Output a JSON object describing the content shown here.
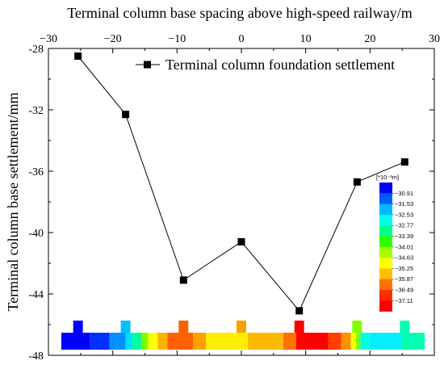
{
  "chart_data": {
    "type": "line",
    "title": "",
    "xlabel": "Terminal column base spacing above high-speed railway/m",
    "ylabel": "Terminal column base settlement/mm",
    "xlim": [
      -30,
      30
    ],
    "ylim": [
      -48,
      -28
    ],
    "x_ticks": [
      -30,
      -20,
      -10,
      0,
      10,
      20,
      30
    ],
    "x_tick_labels": [
      "−30",
      "−20",
      "−10",
      "0",
      "10",
      "20",
      "30"
    ],
    "y_ticks": [
      -28,
      -32,
      -36,
      -40,
      -44,
      -48
    ],
    "y_tick_labels": [
      "-28",
      "-32",
      "-36",
      "-40",
      "-44",
      "-48"
    ],
    "x_axis_position": "top",
    "grid": false,
    "legend_position": "top-right",
    "series": [
      {
        "name": "Terminal column foundation settlement",
        "marker": "square",
        "color": "#000000",
        "x": [
          -25.4,
          -18,
          -9,
          0,
          9,
          18,
          25.4
        ],
        "y": [
          -28.5,
          -32.3,
          -43.1,
          -40.6,
          -45.1,
          -36.7,
          -35.4
        ]
      }
    ],
    "colorbar": {
      "unit": "[*10⁻³m]",
      "labels": [
        "−30.91",
        "−31.53",
        "−32.53",
        "−32.77",
        "−33.39",
        "−34.01",
        "−34.63",
        "−35.25",
        "−35.87",
        "−36.49",
        "−37.11"
      ],
      "colors": [
        "#0000ff",
        "#005cff",
        "#00b9ff",
        "#00ffe8",
        "#00ff8b",
        "#2eff00",
        "#a2ff00",
        "#ffff00",
        "#ffc000",
        "#ff7400",
        "#ff2e00",
        "#ff0000"
      ]
    },
    "contour_strip": {
      "segments": [
        {
          "from": -28.0,
          "to": -23.5,
          "color": "#0000ff"
        },
        {
          "from": -23.5,
          "to": -20.5,
          "color": "#0030ff"
        },
        {
          "from": -20.5,
          "to": -18.0,
          "color": "#0090ff"
        },
        {
          "from": -18.0,
          "to": -17.0,
          "color": "#00e0ff"
        },
        {
          "from": -17.0,
          "to": -15.5,
          "color": "#00ffa0"
        },
        {
          "from": -15.5,
          "to": -14.5,
          "color": "#80ff00"
        },
        {
          "from": -14.5,
          "to": -13.0,
          "color": "#ffff00"
        },
        {
          "from": -13.0,
          "to": -11.5,
          "color": "#ffb000"
        },
        {
          "from": -11.5,
          "to": -7.5,
          "color": "#ff6000"
        },
        {
          "from": -7.5,
          "to": -5.5,
          "color": "#ffa000"
        },
        {
          "from": -5.5,
          "to": 1.0,
          "color": "#ffee00"
        },
        {
          "from": 1.0,
          "to": 6.5,
          "color": "#ffb800"
        },
        {
          "from": 6.5,
          "to": 8.5,
          "color": "#ff7000"
        },
        {
          "from": 8.5,
          "to": 13.5,
          "color": "#ff0000"
        },
        {
          "from": 13.5,
          "to": 15.5,
          "color": "#ff4000"
        },
        {
          "from": 15.5,
          "to": 17.0,
          "color": "#ff9000"
        },
        {
          "from": 17.0,
          "to": 17.8,
          "color": "#ffff00"
        },
        {
          "from": 17.8,
          "to": 18.5,
          "color": "#80ff00"
        },
        {
          "from": 18.5,
          "to": 20.0,
          "color": "#00ffe0"
        },
        {
          "from": 20.0,
          "to": 25.0,
          "color": "#00f0ff"
        },
        {
          "from": 25.0,
          "to": 28.5,
          "color": "#00ffb0"
        }
      ]
    }
  }
}
